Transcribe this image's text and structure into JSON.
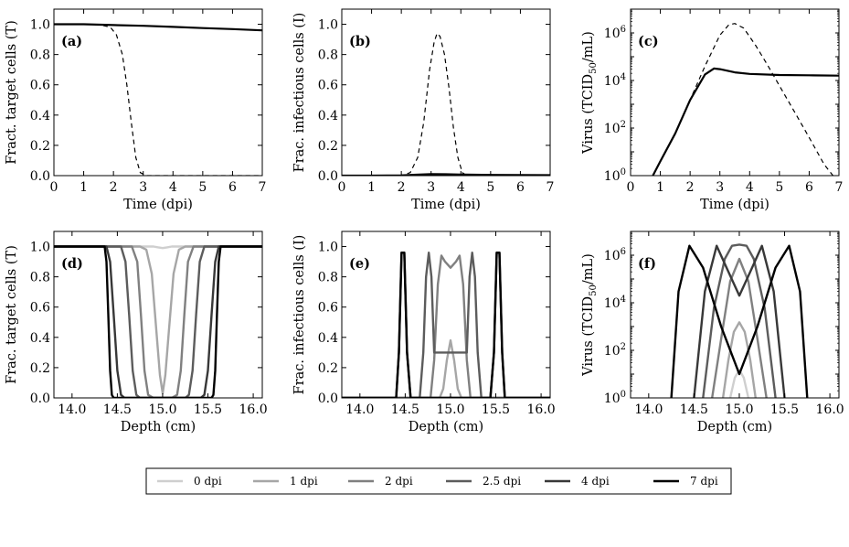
{
  "legend": {
    "items": [
      {
        "label": "0 dpi",
        "color": "#cfcfcf"
      },
      {
        "label": "1 dpi",
        "color": "#a6a6a6"
      },
      {
        "label": "2 dpi",
        "color": "#808080"
      },
      {
        "label": "2.5 dpi",
        "color": "#5c5c5c"
      },
      {
        "label": "4 dpi",
        "color": "#383838"
      },
      {
        "label": "7 dpi",
        "color": "#000000"
      }
    ]
  },
  "chart_data": [
    {
      "id": "a",
      "panel_label": "(a)",
      "type": "line",
      "xlabel": "Time (dpi)",
      "ylabel": "Fract. target cells (T)",
      "xlim": [
        0,
        7
      ],
      "ylim": [
        0,
        1.1
      ],
      "xticks": [
        "0",
        "1",
        "2",
        "3",
        "4",
        "5",
        "6",
        "7"
      ],
      "yticks": [
        "0.0",
        "0.2",
        "0.4",
        "0.6",
        "0.8",
        "1.0"
      ],
      "series": [
        {
          "style": "solid",
          "x": [
            0,
            1,
            2,
            3,
            4,
            5,
            6,
            7
          ],
          "y": [
            1.0,
            1.0,
            0.995,
            0.99,
            0.983,
            0.975,
            0.968,
            0.96
          ]
        },
        {
          "style": "dashed",
          "x": [
            0,
            1,
            1.6,
            1.9,
            2.1,
            2.3,
            2.45,
            2.6,
            2.75,
            2.9,
            3.1,
            4,
            5,
            6,
            7
          ],
          "y": [
            1.0,
            1.0,
            0.995,
            0.98,
            0.93,
            0.8,
            0.6,
            0.35,
            0.12,
            0.02,
            0.0,
            0.0,
            0.0,
            0.0,
            0.0
          ]
        }
      ]
    },
    {
      "id": "b",
      "panel_label": "(b)",
      "type": "line",
      "xlabel": "Time (dpi)",
      "ylabel": "Frac. infectious cells (I)",
      "xlim": [
        0,
        7
      ],
      "ylim": [
        0,
        1.1
      ],
      "xticks": [
        "0",
        "1",
        "2",
        "3",
        "4",
        "5",
        "6",
        "7"
      ],
      "yticks": [
        "0.0",
        "0.2",
        "0.4",
        "0.6",
        "0.8",
        "1.0"
      ],
      "series": [
        {
          "style": "solid",
          "x": [
            0,
            1,
            2,
            2.5,
            3,
            3.5,
            4,
            5,
            6,
            7
          ],
          "y": [
            0,
            0,
            0.002,
            0.006,
            0.01,
            0.009,
            0.007,
            0.005,
            0.004,
            0.003
          ]
        },
        {
          "style": "dashed",
          "x": [
            0,
            2,
            2.3,
            2.55,
            2.75,
            2.95,
            3.1,
            3.2,
            3.3,
            3.45,
            3.6,
            3.75,
            3.9,
            4.05,
            4.2,
            5,
            6,
            7
          ],
          "y": [
            0,
            0,
            0.02,
            0.12,
            0.35,
            0.7,
            0.88,
            0.94,
            0.92,
            0.8,
            0.58,
            0.32,
            0.12,
            0.02,
            0,
            0,
            0,
            0
          ]
        }
      ]
    },
    {
      "id": "c",
      "panel_label": "(c)",
      "type": "line",
      "yscale": "log",
      "xlabel": "Time (dpi)",
      "ylabel": "Virus (TCID50/mL)",
      "xlim": [
        0,
        7
      ],
      "ylim": [
        1,
        10000000
      ],
      "xticks": [
        "0",
        "1",
        "2",
        "3",
        "4",
        "5",
        "6",
        "7"
      ],
      "yticks": [
        {
          "base": "10",
          "exp": "0"
        },
        {
          "base": "10",
          "exp": "2"
        },
        {
          "base": "10",
          "exp": "4"
        },
        {
          "base": "10",
          "exp": "6"
        }
      ],
      "series": [
        {
          "style": "solid",
          "x": [
            0.75,
            1,
            1.5,
            2,
            2.5,
            2.8,
            3,
            3.5,
            4,
            5,
            6,
            7
          ],
          "y": [
            1,
            4,
            60,
            1500,
            18000,
            32000,
            30000,
            22000,
            19000,
            17000,
            16500,
            16000
          ]
        },
        {
          "style": "dashed",
          "x": [
            0.75,
            1,
            1.5,
            2,
            2.5,
            3,
            3.3,
            3.5,
            3.8,
            4.2,
            4.6,
            5,
            5.5,
            6,
            6.5,
            6.8
          ],
          "y": [
            1,
            4,
            60,
            1500,
            40000,
            800000,
            2200000,
            2500000,
            1600000,
            300000,
            45000,
            6000,
            500,
            40,
            3,
            1
          ]
        }
      ]
    },
    {
      "id": "d",
      "panel_label": "(d)",
      "type": "line",
      "xlabel": "Depth (cm)",
      "ylabel": "Frac. target cells (T)",
      "xlim": [
        13.8,
        16.1
      ],
      "ylim": [
        0,
        1.1
      ],
      "xticks": [
        "14.0",
        "14.5",
        "15.0",
        "15.5",
        "16.0"
      ],
      "yticks": [
        "0.0",
        "0.2",
        "0.4",
        "0.6",
        "0.8",
        "1.0"
      ],
      "series": [
        {
          "name": "0 dpi",
          "x": [
            13.8,
            14.9,
            14.95,
            15.0,
            15.05,
            15.1,
            16.1
          ],
          "y": [
            1.0,
            1.0,
            0.995,
            0.99,
            0.995,
            1.0,
            1.0
          ]
        },
        {
          "name": "1 dpi",
          "x": [
            13.8,
            14.75,
            14.82,
            14.88,
            14.93,
            14.97,
            15.0,
            15.03,
            15.07,
            15.12,
            15.18,
            15.25,
            16.1
          ],
          "y": [
            1.0,
            1.0,
            0.98,
            0.82,
            0.45,
            0.15,
            0.03,
            0.15,
            0.45,
            0.82,
            0.98,
            1.0,
            1.0
          ]
        },
        {
          "name": "2 dpi",
          "x": [
            13.8,
            14.66,
            14.72,
            14.76,
            14.8,
            14.84,
            14.9,
            15.1,
            15.16,
            15.2,
            15.24,
            15.28,
            15.34,
            16.1
          ],
          "y": [
            1.0,
            1.0,
            0.9,
            0.55,
            0.18,
            0.02,
            0,
            0,
            0.02,
            0.18,
            0.55,
            0.9,
            1.0,
            1.0
          ]
        },
        {
          "name": "2.5 dpi",
          "x": [
            13.8,
            14.54,
            14.59,
            14.63,
            14.67,
            14.71,
            14.75,
            15.25,
            15.29,
            15.33,
            15.37,
            15.41,
            15.46,
            16.1
          ],
          "y": [
            1.0,
            1.0,
            0.9,
            0.55,
            0.18,
            0.02,
            0,
            0,
            0.02,
            0.18,
            0.55,
            0.9,
            1.0,
            1.0
          ]
        },
        {
          "name": "4 dpi",
          "x": [
            13.8,
            14.38,
            14.42,
            14.46,
            14.5,
            14.54,
            14.58,
            15.42,
            15.46,
            15.5,
            15.54,
            15.58,
            15.62,
            16.1
          ],
          "y": [
            1.0,
            1.0,
            0.9,
            0.55,
            0.18,
            0.02,
            0,
            0,
            0.02,
            0.18,
            0.55,
            0.9,
            1.0,
            1.0
          ]
        },
        {
          "name": "7 dpi",
          "x": [
            13.8,
            14.36,
            14.38,
            14.4,
            14.42,
            14.44,
            14.46,
            15.54,
            15.56,
            15.58,
            15.6,
            15.62,
            15.64,
            16.1
          ],
          "y": [
            1.0,
            1.0,
            0.9,
            0.55,
            0.18,
            0.02,
            0,
            0,
            0.02,
            0.18,
            0.55,
            0.9,
            1.0,
            1.0
          ]
        }
      ]
    },
    {
      "id": "e",
      "panel_label": "(e)",
      "type": "line",
      "xlabel": "Depth (cm)",
      "ylabel": "Frac. infectious cells (I)",
      "xlim": [
        13.8,
        16.1
      ],
      "ylim": [
        0,
        1.1
      ],
      "xticks": [
        "14.0",
        "14.5",
        "15.0",
        "15.5",
        "16.0"
      ],
      "yticks": [
        "0.0",
        "0.2",
        "0.4",
        "0.6",
        "0.8",
        "1.0"
      ],
      "series": [
        {
          "name": "0 dpi",
          "x": [
            13.8,
            14.97,
            15.0,
            15.03,
            16.1
          ],
          "y": [
            0,
            0,
            0.005,
            0,
            0
          ]
        },
        {
          "name": "1 dpi",
          "x": [
            13.8,
            14.88,
            14.92,
            14.96,
            15.0,
            15.04,
            15.08,
            15.12,
            16.1
          ],
          "y": [
            0,
            0,
            0.06,
            0.25,
            0.38,
            0.25,
            0.06,
            0,
            0
          ]
        },
        {
          "name": "2 dpi",
          "x": [
            13.8,
            14.78,
            14.82,
            14.86,
            14.9,
            14.94,
            15.0,
            15.06,
            15.1,
            15.14,
            15.18,
            15.22,
            16.1
          ],
          "y": [
            0,
            0,
            0.25,
            0.75,
            0.94,
            0.9,
            0.86,
            0.9,
            0.94,
            0.75,
            0.25,
            0,
            0
          ]
        },
        {
          "name": "2.5 dpi",
          "x": [
            13.8,
            14.66,
            14.7,
            14.73,
            14.76,
            14.79,
            14.82,
            15.18,
            15.21,
            15.24,
            15.27,
            15.3,
            15.34,
            16.1
          ],
          "y": [
            0,
            0,
            0.3,
            0.8,
            0.96,
            0.8,
            0.3,
            0.3,
            0.8,
            0.96,
            0.8,
            0.3,
            0,
            0
          ]
        },
        {
          "name": "4 dpi",
          "x": [
            13.8,
            14.4,
            14.43,
            14.46,
            14.49,
            14.52,
            14.56,
            15.44,
            15.48,
            15.51,
            15.54,
            15.57,
            15.6,
            16.1
          ],
          "y": [
            0,
            0,
            0.3,
            0.96,
            0.96,
            0.3,
            0,
            0,
            0.3,
            0.96,
            0.96,
            0.3,
            0,
            0
          ]
        },
        {
          "name": "7 dpi",
          "x": [
            13.8,
            14.4,
            14.43,
            14.46,
            14.49,
            14.52,
            14.56,
            15.44,
            15.48,
            15.51,
            15.54,
            15.57,
            15.6,
            16.1
          ],
          "y": [
            0,
            0,
            0.3,
            0.96,
            0.96,
            0.3,
            0,
            0,
            0.3,
            0.96,
            0.96,
            0.3,
            0,
            0
          ]
        }
      ]
    },
    {
      "id": "f",
      "panel_label": "(f)",
      "type": "line",
      "yscale": "log",
      "xlabel": "Depth (cm)",
      "ylabel": "Virus (TCID50/mL)",
      "xlim": [
        13.8,
        16.1
      ],
      "ylim": [
        1,
        10000000
      ],
      "xticks": [
        "14.0",
        "14.5",
        "15.0",
        "15.5",
        "16.0"
      ],
      "yticks": [
        {
          "base": "10",
          "exp": "0"
        },
        {
          "base": "10",
          "exp": "2"
        },
        {
          "base": "10",
          "exp": "4"
        },
        {
          "base": "10",
          "exp": "6"
        }
      ],
      "series": [
        {
          "name": "0 dpi",
          "x": [
            14.9,
            14.95,
            15.0,
            15.05,
            15.1
          ],
          "y": [
            1,
            7,
            15,
            7,
            1
          ]
        },
        {
          "name": "1 dpi",
          "x": [
            14.82,
            14.88,
            14.94,
            15.0,
            15.06,
            15.12,
            15.18
          ],
          "y": [
            1,
            40,
            600,
            1500,
            600,
            40,
            1
          ]
        },
        {
          "name": "2 dpi",
          "x": [
            14.7,
            14.8,
            14.9,
            15.0,
            15.1,
            15.2,
            15.3
          ],
          "y": [
            1,
            300,
            80000,
            700000,
            80000,
            300,
            1
          ]
        },
        {
          "name": "2.5 dpi",
          "x": [
            14.6,
            14.72,
            14.84,
            14.92,
            15.0,
            15.08,
            15.16,
            15.28,
            15.4
          ],
          "y": [
            1,
            6000,
            700000,
            2500000,
            2800000,
            2500000,
            700000,
            6000,
            1
          ]
        },
        {
          "name": "4 dpi",
          "x": [
            14.5,
            14.62,
            14.75,
            14.88,
            15.0,
            15.12,
            15.25,
            15.38,
            15.5
          ],
          "y": [
            1,
            30000,
            2500000,
            200000,
            20000,
            200000,
            2500000,
            30000,
            1
          ]
        },
        {
          "name": "7 dpi",
          "x": [
            14.25,
            14.33,
            14.45,
            14.6,
            14.8,
            15.0,
            15.2,
            15.4,
            15.55,
            15.67,
            15.75
          ],
          "y": [
            1,
            30000,
            2500000,
            300000,
            1000,
            10,
            1000,
            300000,
            2500000,
            30000,
            1
          ]
        }
      ]
    }
  ]
}
